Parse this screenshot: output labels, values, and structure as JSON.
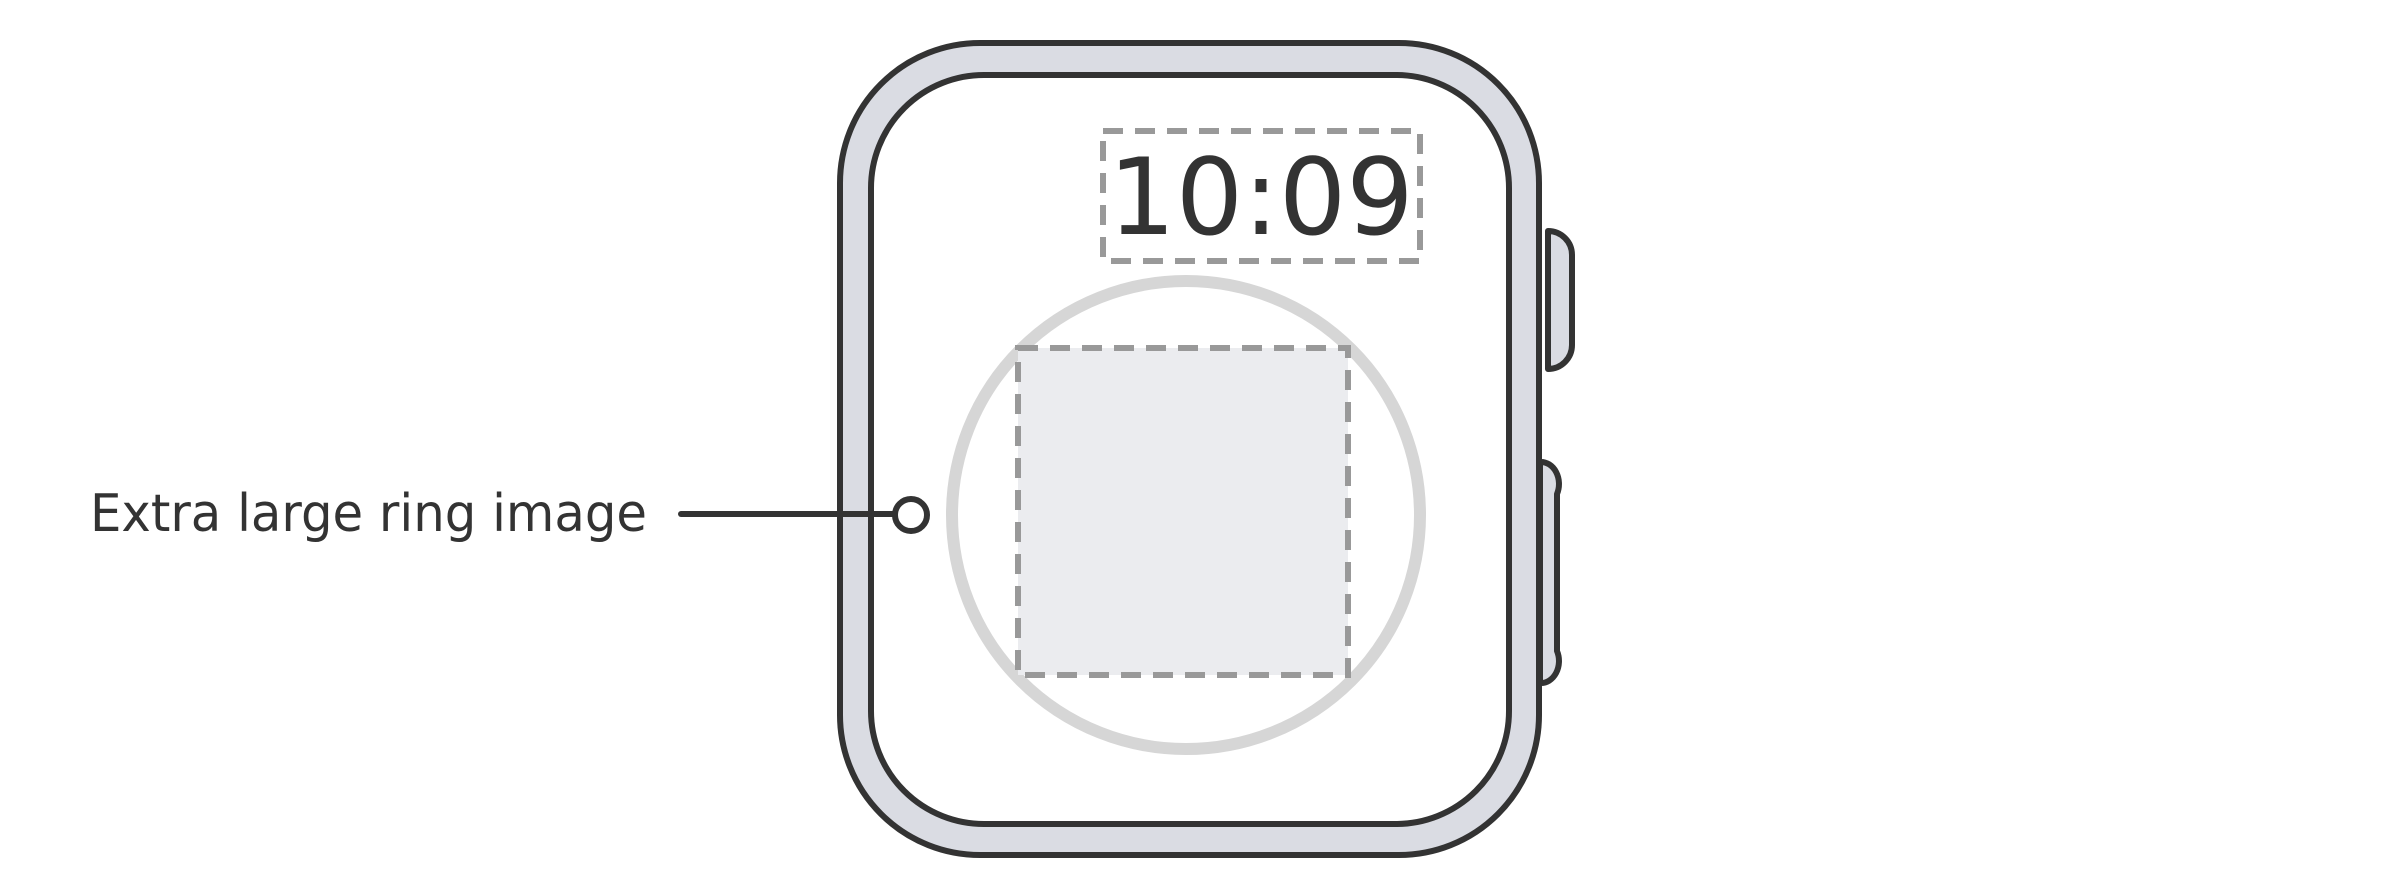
{
  "watch_face": {
    "time": "10:09"
  },
  "callout": {
    "label": "Extra large ring image"
  },
  "colors": {
    "outline": "#333333",
    "case_fill": "#dadce3",
    "screen_fill": "#ffffff",
    "ring": "#d6d6d6",
    "image_placeholder": "#ebecef",
    "dashed_guide": "#999999"
  }
}
